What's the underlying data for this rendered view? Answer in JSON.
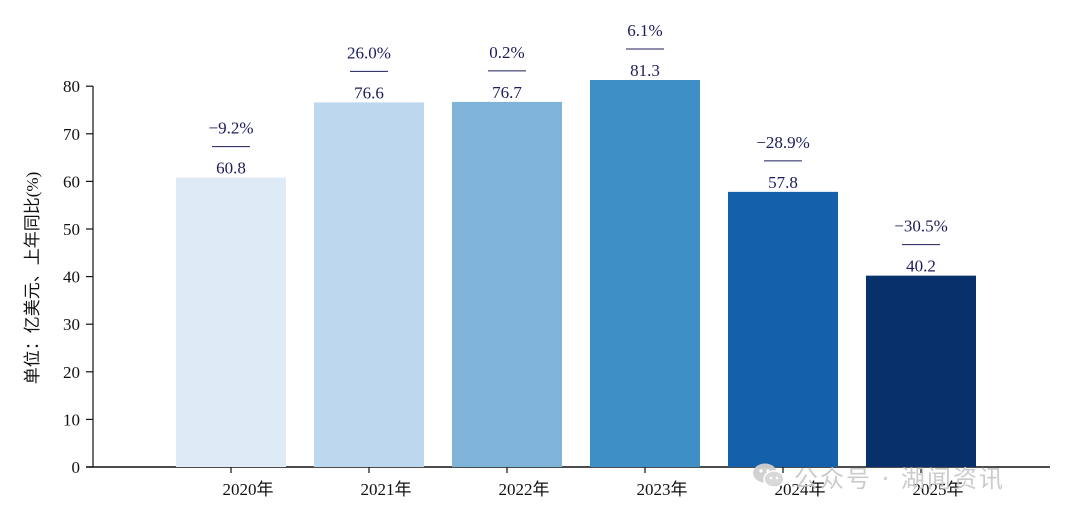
{
  "chart_data": {
    "type": "bar",
    "categories": [
      "2020年",
      "2021年",
      "2022年",
      "2023年",
      "2024年",
      "2025年"
    ],
    "values": [
      60.8,
      76.6,
      76.7,
      81.3,
      57.8,
      40.2
    ],
    "value_labels": [
      "60.8",
      "76.6",
      "76.7",
      "81.3",
      "57.8",
      "40.2"
    ],
    "yoy_labels": [
      "−9.2%",
      "26.0%",
      "0.2%",
      "6.1%",
      "−28.9%",
      "−30.5%"
    ],
    "bar_colors": [
      "#deebf7",
      "#bdd7ee",
      "#7fb4d8",
      "#3f8fc7",
      "#1460ab",
      "#08306b"
    ],
    "label_color": "#1c1c5a",
    "ylabel": "单位：亿美元、上年同比(%)",
    "ylim": [
      0,
      80
    ],
    "yticks": [
      0,
      10,
      20,
      30,
      40,
      50,
      60,
      70,
      80
    ],
    "grid": false,
    "title": ""
  },
  "watermark": {
    "icon": "wechat-icon",
    "text": "公众号 · 湖闻资讯"
  }
}
